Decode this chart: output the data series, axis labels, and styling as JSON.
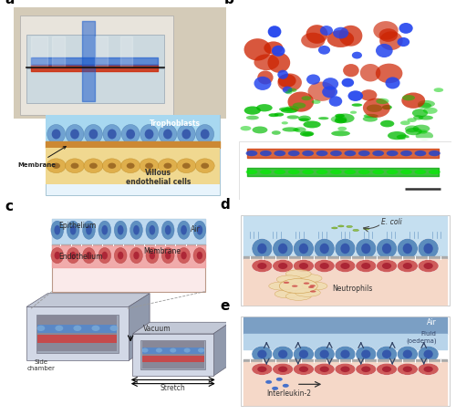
{
  "panel_labels": [
    "a",
    "b",
    "c",
    "d",
    "e"
  ],
  "panel_label_fontsize": 11,
  "panel_label_fontweight": "bold",
  "background_color": "#ffffff",
  "panel_a": {
    "photo_bg": "#c8c0b0",
    "trophoblast_bg": "#87ceeb",
    "endothelial_bg": "#f0d890",
    "membrane_color": "#b87040",
    "cell_blue": "#5599cc",
    "cell_orange": "#cc9944",
    "label_trophoblasts": "Trophoblasts",
    "label_membrane": "Membrane",
    "label_villous": "Villous\nendothelial cells"
  },
  "panel_b": {
    "bg_color": "#000000",
    "bottom_bg": "#f5f5f5",
    "blue": "#2244dd",
    "red": "#cc2200",
    "green": "#00aa00"
  },
  "panel_c": {
    "chip_light": "#d8dce8",
    "chip_mid": "#b0b8c8",
    "chip_dark": "#8890a0",
    "channel_blue": "#5588cc",
    "channel_red": "#cc4444",
    "inset_bg": "#faeaea",
    "label_epithelium": "Epithelium",
    "label_endothelium": "Endothelium",
    "label_membrane": "Membrane",
    "label_air": "Air",
    "label_vacuum": "Vacuum",
    "label_side_chamber": "Side\nchamber",
    "label_stretch": "Stretch"
  },
  "panel_d": {
    "bg_top": "#c5dff0",
    "bg_bottom": "#f5d8c8",
    "cell_blue": "#5588bb",
    "cell_red": "#cc5555",
    "nuc_blue": "#3355aa",
    "nuc_red": "#aa2233",
    "membrane_color": "#888888",
    "label_ecoli": "E. coli",
    "label_neutrophils": "Neutrophils"
  },
  "panel_e": {
    "bg_air": "#7b9fc4",
    "bg_fluid": "#b8d4ea",
    "bg_bottom": "#f5d8c8",
    "cell_blue": "#5588bb",
    "cell_red": "#cc5555",
    "nuc_blue": "#3355aa",
    "nuc_red": "#aa2233",
    "label_air": "Air",
    "label_fluid": "Fluid\n(oedema)",
    "label_interleukin": "Interleukin-2"
  }
}
